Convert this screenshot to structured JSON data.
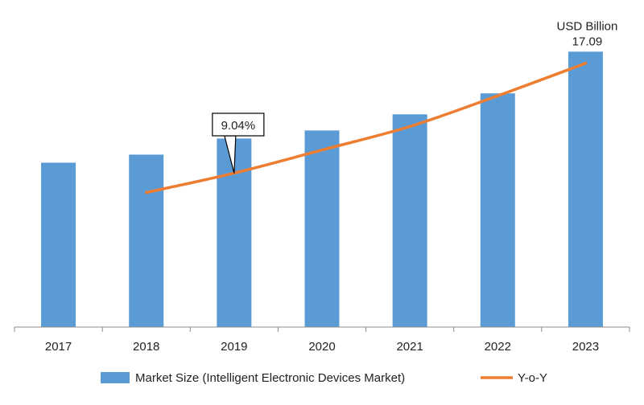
{
  "chart_data": {
    "type": "bar",
    "categories": [
      "2017",
      "2018",
      "2019",
      "2020",
      "2021",
      "2022",
      "2023"
    ],
    "series": [
      {
        "name": "Market Size (Intelligent Electronic Devices Market)",
        "kind": "bar",
        "values": [
          10.2,
          10.7,
          11.7,
          12.2,
          13.2,
          14.5,
          17.09
        ]
      },
      {
        "name": "Y-o-Y",
        "kind": "line",
        "values": [
          null,
          6.9,
          9.04,
          11.6,
          14.2,
          17.6,
          21.2
        ]
      }
    ],
    "bar_value_labels": [
      {
        "category": "2023",
        "value": "17.09",
        "unit": "USD Billion"
      }
    ],
    "line_callout": {
      "category": "2019",
      "label": "9.04%"
    },
    "ylim": [
      0,
      18.5
    ],
    "line_ylim": [
      -8,
      25
    ],
    "grid": false,
    "legend_position": "bottom",
    "colors": {
      "bar": "#5B9BD5",
      "line": "#ED7D31",
      "axis": "#8c8c8c",
      "text": "#222222"
    }
  }
}
